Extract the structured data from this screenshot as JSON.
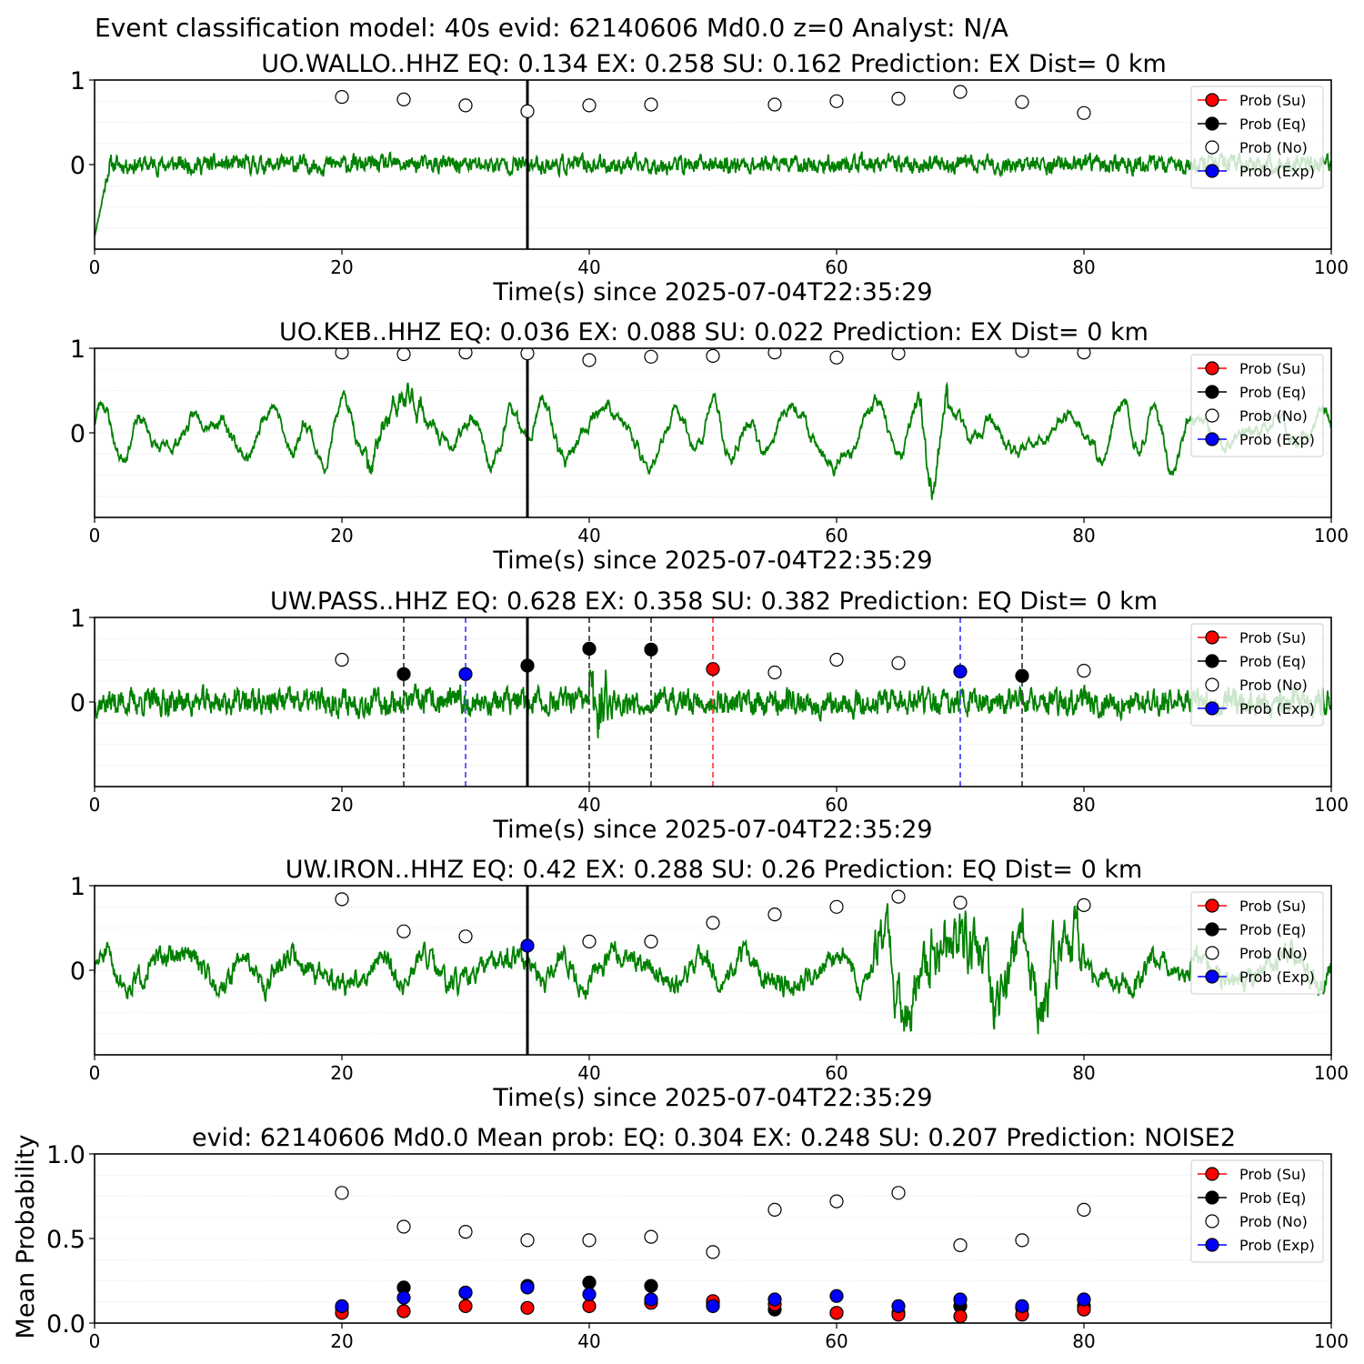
{
  "figure_title": "Event classification model: 40s evid: 62140606 Md0.0 z=0 Analyst: N/A",
  "colors": {
    "waveform": "#008000",
    "su": "#ff0000",
    "eq": "#000000",
    "no": "#ffffff",
    "exp": "#0000ff",
    "pick_line": "#000000"
  },
  "legend_labels": [
    "Prob (Su)",
    "Prob (Eq)",
    "Prob (No)",
    "Prob (Exp)"
  ],
  "chart_data": [
    {
      "type": "line",
      "title": "UO.WALLO..HHZ   EQ: 0.134  EX: 0.258  SU: 0.162   Prediction: EX    Dist= 0 km",
      "xlabel": "Time(s) since 2025-07-04T22:35:29",
      "ylabel": "",
      "xlim": [
        0,
        100
      ],
      "ylim": [
        -1,
        1
      ],
      "xticks": [
        0,
        20,
        40,
        60,
        80,
        100
      ],
      "yticks": [
        {
          "v": 0,
          "label": "0"
        },
        {
          "v": 1,
          "label": "1"
        }
      ],
      "pick_time": 35,
      "waveform": {
        "seed": 11,
        "style": "noise",
        "amp": 0.1,
        "start_drop": -0.85
      },
      "prob_no": {
        "x": [
          20,
          25,
          30,
          35,
          40,
          45,
          55,
          60,
          65,
          70,
          75,
          80
        ],
        "y": [
          0.8,
          0.77,
          0.7,
          0.63,
          0.7,
          0.71,
          0.71,
          0.75,
          0.78,
          0.86,
          0.74,
          0.61
        ]
      },
      "prob_eq": {
        "x": [],
        "y": []
      },
      "prob_su": {
        "x": [],
        "y": []
      },
      "prob_exp": {
        "x": [],
        "y": []
      },
      "vlines": [],
      "legend_position": "upper-right",
      "grid": "horizontal-dotted"
    },
    {
      "type": "line",
      "title": "UO.KEB..HHZ   EQ: 0.036  EX: 0.088  SU: 0.022   Prediction: EX    Dist= 0 km",
      "xlabel": "Time(s) since 2025-07-04T22:35:29",
      "ylabel": "",
      "xlim": [
        0,
        100
      ],
      "ylim": [
        -1,
        1
      ],
      "xticks": [
        0,
        20,
        40,
        60,
        80,
        100
      ],
      "yticks": [
        {
          "v": 0,
          "label": "0"
        },
        {
          "v": 1,
          "label": "1"
        }
      ],
      "pick_time": 35,
      "waveform": {
        "seed": 23,
        "style": "wave",
        "amp": 0.35
      },
      "prob_no": {
        "x": [
          20,
          25,
          30,
          35,
          40,
          45,
          50,
          55,
          60,
          65,
          75,
          80
        ],
        "y": [
          0.95,
          0.93,
          0.95,
          0.94,
          0.86,
          0.9,
          0.91,
          0.95,
          0.89,
          0.94,
          0.97,
          0.95
        ]
      },
      "prob_eq": {
        "x": [],
        "y": []
      },
      "prob_su": {
        "x": [],
        "y": []
      },
      "prob_exp": {
        "x": [],
        "y": []
      },
      "vlines": [],
      "legend_position": "upper-right",
      "grid": "horizontal-dotted"
    },
    {
      "type": "line",
      "title": "UW.PASS..HHZ   EQ: 0.628  EX: 0.358  SU: 0.382   Prediction: EQ    Dist= 0 km",
      "xlabel": "Time(s) since 2025-07-04T22:35:29",
      "ylabel": "",
      "xlim": [
        0,
        100
      ],
      "ylim": [
        -1,
        1
      ],
      "xticks": [
        0,
        20,
        40,
        60,
        80,
        100
      ],
      "yticks": [
        {
          "v": 0,
          "label": "0"
        },
        {
          "v": 1,
          "label": "1"
        }
      ],
      "pick_time": 35,
      "waveform": {
        "seed": 37,
        "style": "noise",
        "amp": 0.15,
        "burst": [
          40,
          41.5
        ]
      },
      "prob_no": {
        "x": [
          20,
          55,
          60,
          65,
          80
        ],
        "y": [
          0.5,
          0.35,
          0.5,
          0.46,
          0.37
        ]
      },
      "prob_eq": {
        "x": [
          25,
          35,
          40,
          45,
          75
        ],
        "y": [
          0.33,
          0.43,
          0.63,
          0.62,
          0.31
        ]
      },
      "prob_su": {
        "x": [
          50
        ],
        "y": [
          0.39
        ]
      },
      "prob_exp": {
        "x": [
          30,
          70
        ],
        "y": [
          0.33,
          0.36
        ]
      },
      "vlines": [
        {
          "x": 25,
          "color": "#444444"
        },
        {
          "x": 30,
          "color": "#4a4aff"
        },
        {
          "x": 40,
          "color": "#444444"
        },
        {
          "x": 45,
          "color": "#444444"
        },
        {
          "x": 50,
          "color": "#ff4a4a"
        },
        {
          "x": 70,
          "color": "#4a4aff"
        },
        {
          "x": 75,
          "color": "#444444"
        }
      ],
      "legend_position": "upper-right",
      "grid": "horizontal-dotted"
    },
    {
      "type": "line",
      "title": "UW.IRON..HHZ   EQ: 0.42  EX: 0.288  SU: 0.26   Prediction: EQ    Dist= 0 km",
      "xlabel": "Time(s) since 2025-07-04T22:35:29",
      "ylabel": "",
      "xlim": [
        0,
        100
      ],
      "ylim": [
        -1,
        1
      ],
      "xticks": [
        0,
        20,
        40,
        60,
        80,
        100
      ],
      "yticks": [
        {
          "v": 0,
          "label": "0"
        },
        {
          "v": 1,
          "label": "1"
        }
      ],
      "pick_time": 35,
      "waveform": {
        "seed": 51,
        "style": "mixed",
        "amp": 0.22,
        "burst": [
          63,
          80
        ]
      },
      "prob_no": {
        "x": [
          20,
          25,
          30,
          40,
          45,
          50,
          55,
          60,
          65,
          70,
          80
        ],
        "y": [
          0.84,
          0.46,
          0.4,
          0.34,
          0.34,
          0.56,
          0.66,
          0.75,
          0.87,
          0.8,
          0.77
        ]
      },
      "prob_eq": {
        "x": [],
        "y": []
      },
      "prob_su": {
        "x": [],
        "y": []
      },
      "prob_exp": {
        "x": [
          35
        ],
        "y": [
          0.29
        ]
      },
      "vlines": [],
      "legend_position": "upper-right",
      "grid": "horizontal-dotted"
    },
    {
      "type": "scatter",
      "title": "evid: 62140606  Md0.0   Mean prob:   EQ: 0.304  EX: 0.248  SU: 0.207   Prediction: NOISE2",
      "xlabel": "",
      "ylabel": "Mean Probability",
      "xlim": [
        0,
        100
      ],
      "ylim": [
        0,
        1
      ],
      "xticks": [
        0,
        20,
        40,
        60,
        80,
        100
      ],
      "yticks": [
        {
          "v": 0,
          "label": "0.0"
        },
        {
          "v": 0.5,
          "label": "0.5"
        },
        {
          "v": 1,
          "label": "1.0"
        }
      ],
      "pick_time": null,
      "waveform": null,
      "prob_no": {
        "x": [
          20,
          25,
          30,
          35,
          40,
          45,
          50,
          55,
          60,
          65,
          70,
          75,
          80
        ],
        "y": [
          0.77,
          0.57,
          0.54,
          0.49,
          0.49,
          0.51,
          0.42,
          0.67,
          0.72,
          0.77,
          0.46,
          0.49,
          0.67
        ]
      },
      "prob_eq": {
        "x": [
          20,
          25,
          30,
          35,
          40,
          45,
          50,
          55,
          60,
          65,
          70,
          75,
          80
        ],
        "y": [
          0.09,
          0.21,
          0.18,
          0.22,
          0.24,
          0.22,
          0.12,
          0.08,
          0.06,
          0.06,
          0.1,
          0.09,
          0.1
        ]
      },
      "prob_su": {
        "x": [
          20,
          25,
          30,
          35,
          40,
          45,
          50,
          55,
          60,
          65,
          70,
          75,
          80
        ],
        "y": [
          0.06,
          0.07,
          0.1,
          0.09,
          0.1,
          0.12,
          0.13,
          0.11,
          0.06,
          0.05,
          0.04,
          0.05,
          0.08
        ]
      },
      "prob_exp": {
        "x": [
          20,
          25,
          30,
          35,
          40,
          45,
          50,
          55,
          60,
          65,
          70,
          75,
          80
        ],
        "y": [
          0.1,
          0.15,
          0.18,
          0.21,
          0.17,
          0.14,
          0.1,
          0.14,
          0.16,
          0.1,
          0.14,
          0.1,
          0.14
        ]
      },
      "vlines": [],
      "legend_position": "upper-right",
      "grid": "horizontal-dotted"
    }
  ]
}
